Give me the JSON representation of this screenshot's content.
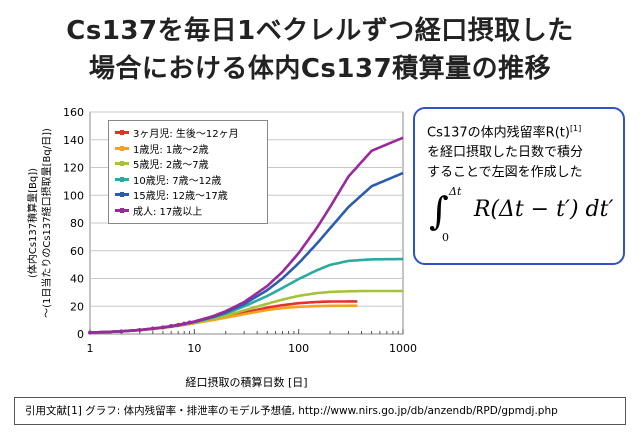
{
  "title_line1": "Cs137を毎日1ベクレルずつ経口摂取した",
  "title_line2": "場合における体内Cs137積算量の推移",
  "note": {
    "line1": "Cs137の体内残留率R(t)",
    "line1_sup": "[1]",
    "line2": "を経口摂取した日数で積分",
    "line3": "することで左図を作成した",
    "formula_upper": "Δt",
    "formula_lower": "0",
    "formula_body": "R(Δt − t′) dt′"
  },
  "reference": "引用文献[1] グラフ: 体内残留率・排泄率のモデル予想値, http://www.nirs.go.jp/db/anzendb/RPD/gpmdj.php",
  "chart_data": {
    "type": "line",
    "x_scale": "log",
    "xlim": [
      1,
      1000
    ],
    "ylim": [
      0,
      160
    ],
    "x_ticks": [
      "1",
      "10",
      "100",
      "1000"
    ],
    "y_ticks": [
      "0",
      "20",
      "40",
      "60",
      "80",
      "100",
      "120",
      "140",
      "160"
    ],
    "xlabel": "経口摂取の積算日数 [日]",
    "ylabel_line1": "(体内Cs137積算量[Bq])",
    "ylabel_line2": "〜(1日当たりのCs137経口摂取量[Bq/日])",
    "grid": "horizontal",
    "legend_position": "top-left",
    "series": [
      {
        "name": "3ヶ月児: 生後〜12ヶ月",
        "color": "#e8302a",
        "x_end": 365,
        "x": [
          1,
          2,
          3,
          5,
          7,
          10,
          15,
          20,
          30,
          50,
          70,
          100,
          150,
          200,
          365
        ],
        "y": [
          1,
          1.9,
          2.8,
          4.4,
          5.9,
          7.8,
          10.3,
          12.3,
          15.4,
          19.0,
          20.8,
          22.2,
          23.1,
          23.4,
          23.5
        ]
      },
      {
        "name": "1歳児: 1歳〜2歳",
        "color": "#f5a21e",
        "x_end": 365,
        "x": [
          1,
          2,
          3,
          5,
          7,
          10,
          15,
          20,
          30,
          50,
          70,
          100,
          150,
          200,
          365
        ],
        "y": [
          1,
          1.9,
          2.8,
          4.4,
          5.9,
          7.8,
          10.0,
          11.8,
          14.3,
          17.3,
          18.7,
          19.6,
          20.1,
          20.3,
          20.4
        ]
      },
      {
        "name": "5歳児: 2歳〜7歳",
        "color": "#a5c23a",
        "x_end": 1000,
        "x": [
          1,
          2,
          3,
          5,
          7,
          10,
          15,
          20,
          30,
          50,
          70,
          100,
          150,
          200,
          300,
          500,
          1000
        ],
        "y": [
          1,
          1.9,
          2.9,
          4.6,
          6.2,
          8.3,
          11.1,
          13.4,
          17.0,
          21.8,
          24.8,
          27.5,
          29.5,
          30.3,
          30.8,
          31.0,
          31.0
        ]
      },
      {
        "name": "10歳児: 7歳〜12歳",
        "color": "#2aaaa0",
        "x_end": 1000,
        "x": [
          1,
          2,
          3,
          5,
          7,
          10,
          15,
          20,
          30,
          50,
          70,
          100,
          150,
          200,
          300,
          500,
          1000
        ],
        "y": [
          1,
          1.9,
          2.9,
          4.7,
          6.3,
          8.6,
          11.9,
          14.8,
          19.9,
          27.4,
          33.2,
          39.6,
          46.0,
          49.8,
          52.7,
          53.8,
          54.0
        ]
      },
      {
        "name": "15歳児: 12歳〜17歳",
        "color": "#2a5db0",
        "x_end": 1000,
        "x": [
          1,
          2,
          3,
          5,
          7,
          10,
          15,
          20,
          30,
          50,
          70,
          100,
          150,
          200,
          300,
          500,
          1000
        ],
        "y": [
          1,
          1.9,
          2.9,
          4.7,
          6.4,
          8.7,
          12.3,
          15.6,
          21.6,
          31.6,
          40.1,
          51.0,
          65.3,
          76.2,
          91.5,
          106.5,
          116.0
        ]
      },
      {
        "name": "成人: 17歳以上",
        "color": "#9a2a9a",
        "x_end": 1000,
        "x": [
          1,
          2,
          3,
          5,
          7,
          10,
          15,
          20,
          30,
          50,
          70,
          100,
          150,
          200,
          300,
          500,
          1000
        ],
        "y": [
          1,
          1.9,
          2.9,
          4.8,
          6.6,
          9.0,
          12.8,
          16.4,
          23.0,
          34.6,
          44.8,
          58.3,
          76.7,
          91.5,
          113.5,
          132.0,
          141.5
        ]
      }
    ]
  }
}
